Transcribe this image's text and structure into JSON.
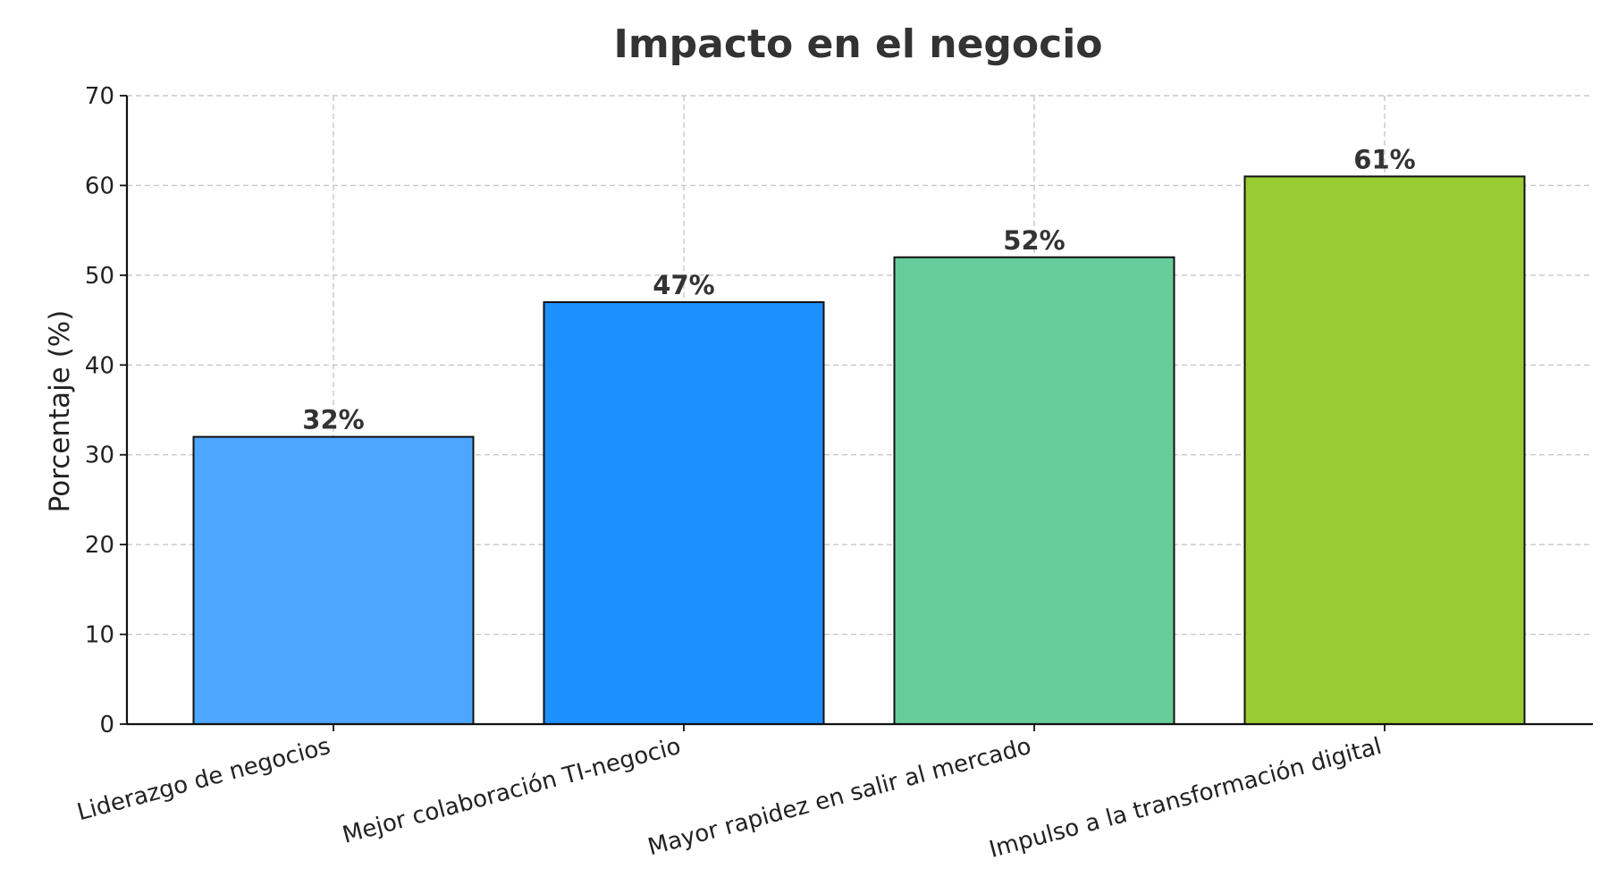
{
  "chart_data": {
    "type": "bar",
    "title": "Impacto en el negocio",
    "xlabel": "",
    "ylabel": "Porcentaje (%)",
    "ylim": [
      0,
      70
    ],
    "yticks": [
      0,
      10,
      20,
      30,
      40,
      50,
      60,
      70
    ],
    "grid": true,
    "categories": [
      "Liderazgo de negocios",
      "Mejor colaboración TI-negocio",
      "Mayor rapidez en salir al mercado",
      "Impulso a la transformación digital"
    ],
    "values": [
      32,
      47,
      52,
      61
    ],
    "data_labels": [
      "32%",
      "47%",
      "52%",
      "61%"
    ],
    "colors": [
      "#4da6ff",
      "#1e8fff",
      "#66cc99",
      "#99cc33"
    ]
  }
}
